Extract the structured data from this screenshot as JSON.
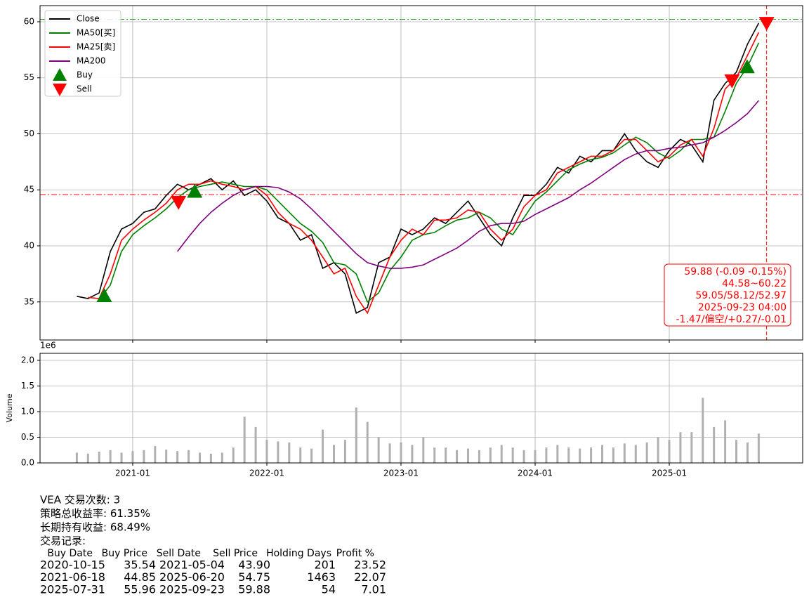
{
  "chart_data": [
    {
      "type": "line",
      "x": [
        "2020-08",
        "2020-09",
        "2020-10",
        "2020-11",
        "2020-12",
        "2021-01",
        "2021-02",
        "2021-03",
        "2021-04",
        "2021-05",
        "2021-06",
        "2021-07",
        "2021-08",
        "2021-09",
        "2021-10",
        "2021-11",
        "2021-12",
        "2022-01",
        "2022-02",
        "2022-03",
        "2022-04",
        "2022-05",
        "2022-06",
        "2022-07",
        "2022-08",
        "2022-09",
        "2022-10",
        "2022-11",
        "2022-12",
        "2023-01",
        "2023-02",
        "2023-03",
        "2023-04",
        "2023-05",
        "2023-06",
        "2023-07",
        "2023-08",
        "2023-09",
        "2023-10",
        "2023-11",
        "2023-12",
        "2024-01",
        "2024-02",
        "2024-03",
        "2024-04",
        "2024-05",
        "2024-06",
        "2024-07",
        "2024-08",
        "2024-09",
        "2024-10",
        "2024-11",
        "2024-12",
        "2025-01",
        "2025-02",
        "2025-03",
        "2025-04",
        "2025-05",
        "2025-06",
        "2025-07",
        "2025-08",
        "2025-09"
      ],
      "series": [
        {
          "name": "Close",
          "color": "#000000",
          "values": [
            35.5,
            35.3,
            35.8,
            39.5,
            41.5,
            42.0,
            43.0,
            43.3,
            44.5,
            45.5,
            45.0,
            45.5,
            46.0,
            45.0,
            45.8,
            44.5,
            45.0,
            44.0,
            42.5,
            42.0,
            40.5,
            41.0,
            38.0,
            38.5,
            37.5,
            34.0,
            34.5,
            38.5,
            39.0,
            41.5,
            41.0,
            41.5,
            42.5,
            42.0,
            43.0,
            44.0,
            42.5,
            41.0,
            40.0,
            42.5,
            44.5,
            44.5,
            45.5,
            47.0,
            46.5,
            48.0,
            47.5,
            48.5,
            48.5,
            50.0,
            48.5,
            47.5,
            47.0,
            48.5,
            49.5,
            49.0,
            47.5,
            53.0,
            54.5,
            55.5,
            58.0,
            59.88
          ]
        },
        {
          "name": "MA50[买]",
          "color": "#008000",
          "values": [
            null,
            null,
            35.2,
            36.5,
            39.5,
            41.0,
            41.8,
            42.5,
            43.3,
            44.3,
            45.0,
            45.3,
            45.5,
            45.7,
            45.5,
            45.3,
            45.3,
            45.0,
            44.0,
            43.0,
            42.0,
            41.3,
            40.3,
            38.5,
            38.3,
            37.5,
            35.0,
            35.8,
            37.8,
            39.0,
            40.5,
            41.0,
            41.2,
            41.8,
            42.3,
            42.5,
            43.0,
            42.5,
            41.5,
            41.0,
            42.5,
            44.0,
            44.8,
            45.8,
            46.8,
            47.3,
            47.7,
            47.9,
            48.3,
            49.0,
            49.7,
            49.2,
            48.3,
            47.8,
            48.5,
            49.5,
            49.5,
            49.7,
            52.0,
            54.5,
            56.0,
            58.12
          ]
        },
        {
          "name": "MA25[卖]",
          "color": "#ff0000",
          "values": [
            null,
            35.4,
            35.3,
            37.5,
            40.5,
            41.5,
            42.3,
            43.0,
            43.8,
            45.0,
            45.5,
            45.5,
            45.8,
            45.5,
            45.3,
            45.0,
            45.3,
            44.5,
            43.0,
            42.0,
            41.5,
            40.5,
            39.0,
            37.5,
            38.0,
            35.5,
            34.0,
            36.5,
            39.0,
            40.5,
            41.5,
            41.0,
            42.3,
            42.3,
            42.5,
            43.2,
            43.0,
            41.5,
            40.5,
            41.5,
            43.5,
            44.5,
            45.0,
            46.5,
            47.0,
            47.5,
            48.0,
            48.0,
            48.5,
            49.5,
            49.5,
            48.5,
            47.5,
            48.0,
            49.0,
            49.5,
            48.0,
            50.5,
            54.0,
            55.0,
            57.0,
            59.05
          ]
        },
        {
          "name": "MA200",
          "color": "#800080",
          "values": [
            null,
            null,
            null,
            null,
            null,
            null,
            null,
            null,
            null,
            39.5,
            40.8,
            42.0,
            43.0,
            43.8,
            44.5,
            45.0,
            45.3,
            45.3,
            45.2,
            44.8,
            44.2,
            43.3,
            42.3,
            41.3,
            40.3,
            39.3,
            38.5,
            38.2,
            38.0,
            38.0,
            38.1,
            38.3,
            38.8,
            39.3,
            39.8,
            40.5,
            41.3,
            41.8,
            42.0,
            42.0,
            42.2,
            42.8,
            43.3,
            43.8,
            44.3,
            45.0,
            45.6,
            46.3,
            47.0,
            47.7,
            48.2,
            48.5,
            48.5,
            48.7,
            48.8,
            49.0,
            49.2,
            49.7,
            50.3,
            51.0,
            51.8,
            52.97
          ]
        }
      ],
      "markers": [
        {
          "name": "Buy",
          "color": "#008000",
          "shape": "triangle-up",
          "x": [
            "2020-10-15",
            "2021-06-18",
            "2025-07-31"
          ],
          "values": [
            35.54,
            44.85,
            55.96
          ]
        },
        {
          "name": "Sell",
          "color": "#ff0000",
          "shape": "triangle-down",
          "x": [
            "2021-05-04",
            "2025-06-20",
            "2025-09-23"
          ],
          "values": [
            43.9,
            54.75,
            59.88
          ]
        }
      ],
      "hlines": [
        {
          "value": 60.22,
          "color": "#2ca02c"
        },
        {
          "value": 44.58,
          "color": "#ff0000"
        }
      ],
      "vline": {
        "x": "2025-09-23",
        "color": "#ff0000"
      },
      "annotation": {
        "color": "#ff0000",
        "lines": [
          "59.88 (-0.09 -0.15%)",
          "44.58~60.22",
          "59.05/58.12/52.97",
          "2025-09-23 04:00",
          "-1.47/偏空/+0.27/-0.01"
        ]
      },
      "xlim": [
        "2020-04-23",
        "2025-12-30"
      ],
      "xticks": [
        "2021-01",
        "2022-01",
        "2023-01",
        "2024-01",
        "2025-01"
      ],
      "ylim": [
        31.6,
        61.44
      ],
      "yticks": [
        35,
        40,
        45,
        50,
        55,
        60
      ],
      "grid": true,
      "legend": "upper left"
    },
    {
      "type": "bar",
      "ylabel": "Volume",
      "offset_label": "1e6",
      "color": "#b0b0b0",
      "x": [
        "2020-08",
        "2020-09",
        "2020-10",
        "2020-11",
        "2020-12",
        "2021-01",
        "2021-02",
        "2021-03",
        "2021-04",
        "2021-05",
        "2021-06",
        "2021-07",
        "2021-08",
        "2021-09",
        "2021-10",
        "2021-11",
        "2021-12",
        "2022-01",
        "2022-02",
        "2022-03",
        "2022-04",
        "2022-05",
        "2022-06",
        "2022-07",
        "2022-08",
        "2022-09",
        "2022-10",
        "2022-11",
        "2022-12",
        "2023-01",
        "2023-02",
        "2023-03",
        "2023-04",
        "2023-05",
        "2023-06",
        "2023-07",
        "2023-08",
        "2023-09",
        "2023-10",
        "2023-11",
        "2023-12",
        "2024-01",
        "2024-02",
        "2024-03",
        "2024-04",
        "2024-05",
        "2024-06",
        "2024-07",
        "2024-08",
        "2024-09",
        "2024-10",
        "2024-11",
        "2024-12",
        "2025-01",
        "2025-02",
        "2025-03",
        "2025-04",
        "2025-05",
        "2025-06",
        "2025-07",
        "2025-08",
        "2025-09"
      ],
      "values": [
        200000,
        180000,
        220000,
        250000,
        200000,
        230000,
        250000,
        330000,
        260000,
        230000,
        250000,
        200000,
        180000,
        200000,
        300000,
        900000,
        700000,
        450000,
        420000,
        400000,
        300000,
        280000,
        650000,
        350000,
        450000,
        1080000,
        800000,
        500000,
        380000,
        400000,
        350000,
        500000,
        300000,
        300000,
        250000,
        280000,
        250000,
        300000,
        350000,
        300000,
        250000,
        250000,
        300000,
        350000,
        300000,
        280000,
        300000,
        350000,
        300000,
        380000,
        350000,
        400000,
        500000,
        450000,
        600000,
        600000,
        1270000,
        700000,
        830000,
        450000,
        400000,
        570000
      ],
      "xlim": [
        "2020-04-23",
        "2025-12-30"
      ],
      "xticks": [
        "2021-01",
        "2022-01",
        "2023-01",
        "2024-01",
        "2025-01"
      ],
      "ylim": [
        0,
        2137000
      ],
      "yticks": [
        {
          "value": 0,
          "label": "0.0"
        },
        {
          "value": 500000,
          "label": "0.5"
        },
        {
          "value": 1000000,
          "label": "1.0"
        },
        {
          "value": 1500000,
          "label": "1.5"
        },
        {
          "value": 2000000,
          "label": "2.0"
        }
      ],
      "grid": true
    }
  ],
  "summary": {
    "lines": [
      "VEA 交易次数: 3",
      "策略总收益率: 61.35%",
      "长期持有收益: 68.49%",
      "交易记录:"
    ]
  },
  "trades": {
    "header": [
      "Buy Date",
      "Buy Price",
      "Sell Date",
      "Sell Price",
      "Holding Days",
      "Profit %"
    ],
    "rows": [
      [
        "2020-10-15",
        "35.54",
        "2021-05-04",
        "43.90",
        "201",
        "23.52"
      ],
      [
        "2021-06-18",
        "44.85",
        "2025-06-20",
        "54.75",
        "1463",
        "22.07"
      ],
      [
        "2025-07-31",
        "55.96",
        "2025-09-23",
        "59.88",
        "54",
        "7.01"
      ]
    ]
  }
}
